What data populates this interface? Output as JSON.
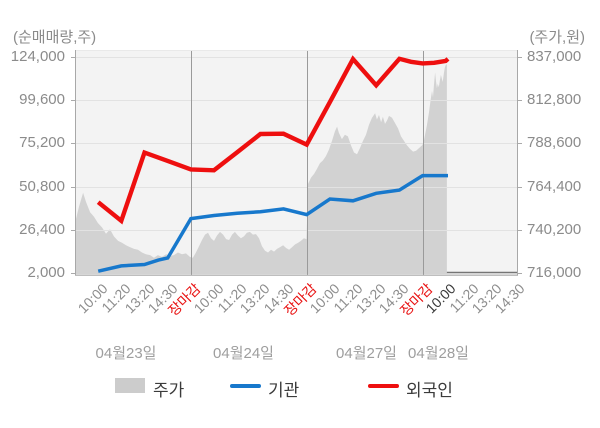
{
  "chart_data": {
    "type": "area+line",
    "title": "",
    "left_axis": {
      "caption": "(순매매량,주)",
      "unit": "주",
      "min": 2000,
      "max": 124000,
      "ticks": [
        124000,
        99600,
        75200,
        50800,
        26400,
        2000
      ],
      "tick_labels": [
        "124,000",
        "99,600",
        "75,200",
        "50,800",
        "26,400",
        "2,000"
      ]
    },
    "right_axis": {
      "caption": "(주가,원)",
      "unit": "원",
      "min": 716000,
      "max": 837000,
      "ticks": [
        837000,
        812800,
        788600,
        764400,
        740200,
        716000
      ],
      "tick_labels": [
        "837,000",
        "812,800",
        "788,600",
        "764,400",
        "740,200",
        "716,000"
      ]
    },
    "x_axis": {
      "tick_labels": [
        {
          "label": "10:00",
          "type": "time"
        },
        {
          "label": "11:20",
          "type": "time"
        },
        {
          "label": "13:20",
          "type": "time"
        },
        {
          "label": "14:30",
          "type": "time"
        },
        {
          "label": "장마감",
          "type": "close"
        },
        {
          "label": "10:00",
          "type": "time"
        },
        {
          "label": "11:20",
          "type": "time"
        },
        {
          "label": "13:20",
          "type": "time"
        },
        {
          "label": "14:30",
          "type": "time"
        },
        {
          "label": "장마감",
          "type": "close"
        },
        {
          "label": "10:00",
          "type": "time"
        },
        {
          "label": "11:20",
          "type": "time"
        },
        {
          "label": "13:20",
          "type": "time"
        },
        {
          "label": "14:30",
          "type": "time"
        },
        {
          "label": "장마감",
          "type": "close"
        },
        {
          "label": "10:00",
          "type": "current"
        },
        {
          "label": "11:20",
          "type": "time"
        },
        {
          "label": "13:20",
          "type": "time"
        },
        {
          "label": "14:30",
          "type": "time"
        }
      ],
      "day_labels": [
        "04월23일",
        "04월24일",
        "04월27일",
        "04월28일"
      ],
      "day_boundaries_t": [
        5,
        10,
        15
      ]
    },
    "series": [
      {
        "name": "주가",
        "type": "area",
        "axis": "right",
        "color": "#d2d2d2",
        "points": [
          [
            0,
            744000
          ],
          [
            0.17,
            753000
          ],
          [
            0.35,
            761000
          ],
          [
            0.47,
            756000
          ],
          [
            0.65,
            750000
          ],
          [
            0.82,
            747500
          ],
          [
            0.99,
            744000
          ],
          [
            1.17,
            741500
          ],
          [
            1.34,
            738000
          ],
          [
            1.51,
            740500
          ],
          [
            1.68,
            736500
          ],
          [
            1.86,
            734000
          ],
          [
            2.03,
            733000
          ],
          [
            2.2,
            731500
          ],
          [
            2.37,
            730500
          ],
          [
            2.55,
            729500
          ],
          [
            2.72,
            729000
          ],
          [
            2.89,
            727500
          ],
          [
            3.06,
            726500
          ],
          [
            3.24,
            726000
          ],
          [
            3.41,
            724500
          ],
          [
            3.58,
            726000
          ],
          [
            3.75,
            725000
          ],
          [
            3.93,
            726500
          ],
          [
            4.1,
            725500
          ],
          [
            4.27,
            726000
          ],
          [
            4.44,
            727500
          ],
          [
            4.62,
            726500
          ],
          [
            4.79,
            727000
          ],
          [
            4.96,
            725000
          ],
          [
            5.09,
            724500
          ],
          [
            5.22,
            727500
          ],
          [
            5.35,
            731000
          ],
          [
            5.48,
            734500
          ],
          [
            5.61,
            737500
          ],
          [
            5.74,
            738500
          ],
          [
            5.87,
            735500
          ],
          [
            6.0,
            734000
          ],
          [
            6.13,
            737000
          ],
          [
            6.26,
            739000
          ],
          [
            6.39,
            737500
          ],
          [
            6.52,
            735000
          ],
          [
            6.65,
            734500
          ],
          [
            6.78,
            737500
          ],
          [
            6.9,
            739000
          ],
          [
            7.03,
            737000
          ],
          [
            7.16,
            735500
          ],
          [
            7.29,
            736500
          ],
          [
            7.42,
            738500
          ],
          [
            7.55,
            739000
          ],
          [
            7.68,
            737500
          ],
          [
            7.81,
            737800
          ],
          [
            7.94,
            735500
          ],
          [
            8.07,
            731000
          ],
          [
            8.2,
            728500
          ],
          [
            8.33,
            727500
          ],
          [
            8.46,
            729000
          ],
          [
            8.59,
            728000
          ],
          [
            8.72,
            729500
          ],
          [
            8.85,
            730500
          ],
          [
            8.98,
            731500
          ],
          [
            9.11,
            730000
          ],
          [
            9.24,
            729000
          ],
          [
            9.37,
            730500
          ],
          [
            9.5,
            732000
          ],
          [
            9.63,
            733000
          ],
          [
            9.75,
            734000
          ],
          [
            9.88,
            735500
          ],
          [
            9.99,
            735000
          ],
          [
            10.06,
            766000
          ],
          [
            10.19,
            769500
          ],
          [
            10.32,
            771500
          ],
          [
            10.45,
            774500
          ],
          [
            10.57,
            777500
          ],
          [
            10.7,
            779000
          ],
          [
            10.83,
            781500
          ],
          [
            10.96,
            785000
          ],
          [
            11.09,
            790000
          ],
          [
            11.22,
            795500
          ],
          [
            11.31,
            798000
          ],
          [
            11.39,
            794500
          ],
          [
            11.52,
            791000
          ],
          [
            11.65,
            793500
          ],
          [
            11.78,
            792500
          ],
          [
            11.91,
            787500
          ],
          [
            12.04,
            783500
          ],
          [
            12.17,
            782500
          ],
          [
            12.3,
            786000
          ],
          [
            12.43,
            790000
          ],
          [
            12.56,
            793500
          ],
          [
            12.69,
            799000
          ],
          [
            12.82,
            803000
          ],
          [
            12.95,
            805500
          ],
          [
            13.03,
            802000
          ],
          [
            13.12,
            804500
          ],
          [
            13.21,
            800500
          ],
          [
            13.29,
            803500
          ],
          [
            13.38,
            799500
          ],
          [
            13.47,
            801500
          ],
          [
            13.55,
            804000
          ],
          [
            13.68,
            803000
          ],
          [
            13.81,
            800000
          ],
          [
            13.94,
            797000
          ],
          [
            14.07,
            792500
          ],
          [
            14.2,
            790000
          ],
          [
            14.33,
            787500
          ],
          [
            14.46,
            785500
          ],
          [
            14.59,
            784000
          ],
          [
            14.72,
            784500
          ],
          [
            14.85,
            786000
          ],
          [
            14.98,
            787500
          ],
          [
            15.04,
            789000
          ],
          [
            15.1,
            793000
          ],
          [
            15.19,
            799000
          ],
          [
            15.28,
            806000
          ],
          [
            15.34,
            812000
          ],
          [
            15.41,
            818000
          ],
          [
            15.45,
            814500
          ],
          [
            15.49,
            821000
          ],
          [
            15.54,
            828500
          ],
          [
            15.58,
            823500
          ],
          [
            15.62,
            819500
          ],
          [
            15.66,
            822000
          ],
          [
            15.7,
            820000
          ],
          [
            15.75,
            824000
          ],
          [
            15.79,
            827000
          ],
          [
            15.83,
            825000
          ],
          [
            15.87,
            823000
          ],
          [
            15.92,
            828000
          ],
          [
            15.96,
            831000
          ],
          [
            16.0,
            832500
          ],
          [
            16.05,
            833000
          ]
        ]
      },
      {
        "name": "기관",
        "type": "line",
        "axis": "left",
        "color": "#1778cc",
        "points": [
          [
            1,
            3000
          ],
          [
            2,
            6000
          ],
          [
            3,
            6800
          ],
          [
            3.6,
            9300
          ],
          [
            4,
            10500
          ],
          [
            5,
            32700
          ],
          [
            6,
            34500
          ],
          [
            7,
            35700
          ],
          [
            8,
            36600
          ],
          [
            9,
            38200
          ],
          [
            10,
            35000
          ],
          [
            11,
            43800
          ],
          [
            12,
            42800
          ],
          [
            13,
            47000
          ],
          [
            14,
            48800
          ],
          [
            15,
            57000
          ],
          [
            16.1,
            57000
          ]
        ]
      },
      {
        "name": "외국인",
        "type": "line",
        "axis": "left",
        "color": "#ee0f0f",
        "points": [
          [
            1,
            42000
          ],
          [
            2,
            31500
          ],
          [
            3,
            70000
          ],
          [
            4,
            65300
          ],
          [
            5,
            60500
          ],
          [
            6,
            60000
          ],
          [
            7,
            70200
          ],
          [
            8,
            80500
          ],
          [
            9,
            80700
          ],
          [
            10,
            74500
          ],
          [
            11,
            98500
          ],
          [
            12,
            122800
          ],
          [
            13,
            108000
          ],
          [
            14,
            123000
          ],
          [
            14.5,
            121300
          ],
          [
            15,
            120400
          ],
          [
            15.5,
            120700
          ],
          [
            16,
            121800
          ],
          [
            16.1,
            122900
          ]
        ]
      }
    ],
    "legend": [
      {
        "label": "주가",
        "swatch": "area",
        "color": "#cccccc"
      },
      {
        "label": "기관",
        "swatch": "line",
        "color": "#1778cc"
      },
      {
        "label": "외국인",
        "swatch": "line",
        "color": "#ee0f0f"
      }
    ],
    "style": {
      "plot_bg": "#f3f3f3",
      "grid_color": "#e2e2e2",
      "day_separator_color": "#9a9a9a",
      "border_color": "#a8a8a8",
      "baseline_color": "#757575",
      "close_label_color": "#e81010",
      "current_label_color": "#3a3a3a"
    }
  }
}
